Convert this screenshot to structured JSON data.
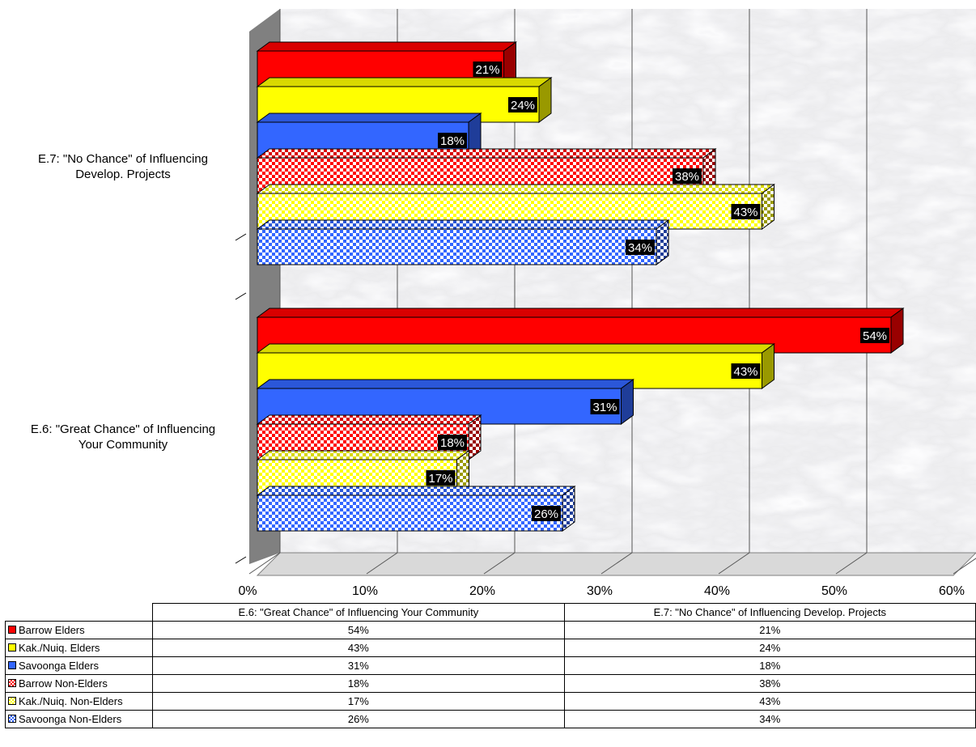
{
  "chart_data": {
    "type": "bar",
    "orientation": "horizontal",
    "categories": [
      "E.6: \"Great Chance\" of Influencing Your Community",
      "E.7: \"No Chance\" of Influencing Develop. Projects"
    ],
    "category_axis_labels": [
      [
        "E.6: \"Great Chance\" of Influencing",
        "Your Community"
      ],
      [
        "E.7: \"No Chance\" of Influencing",
        "Develop. Projects"
      ]
    ],
    "series": [
      {
        "name": "Barrow Elders",
        "values": [
          54,
          21
        ],
        "color": "#ff0000",
        "pattern": "solid"
      },
      {
        "name": "Kak./Nuiq. Elders",
        "values": [
          43,
          24
        ],
        "color": "#ffff00",
        "pattern": "solid"
      },
      {
        "name": "Savoonga Elders",
        "values": [
          31,
          18
        ],
        "color": "#3366ff",
        "pattern": "solid"
      },
      {
        "name": "Barrow Non-Elders",
        "values": [
          18,
          38
        ],
        "color": "#ff0000",
        "pattern": "checker"
      },
      {
        "name": "Kak./Nuiq. Non-Elders",
        "values": [
          17,
          43
        ],
        "color": "#ffff00",
        "pattern": "checker"
      },
      {
        "name": "Savoonga Non-Elders",
        "values": [
          26,
          34
        ],
        "color": "#3366ff",
        "pattern": "checker"
      }
    ],
    "value_labels": {
      "Barrow Elders": [
        "54%",
        "21%"
      ],
      "Kak./Nuiq. Elders": [
        "43%",
        "24%"
      ],
      "Savoonga Elders": [
        "31%",
        "18%"
      ],
      "Barrow Non-Elders": [
        "18%",
        "38%"
      ],
      "Kak./Nuiq. Non-Elders": [
        "17%",
        "43%"
      ],
      "Savoonga Non-Elders": [
        "26%",
        "34%"
      ]
    },
    "xlim": [
      0,
      60
    ],
    "x_ticks": [
      "0%",
      "10%",
      "20%",
      "30%",
      "40%",
      "50%",
      "60%"
    ],
    "x_tick_values": [
      0,
      10,
      20,
      30,
      40,
      50,
      60
    ],
    "grid": true,
    "style": "3d",
    "backdrop": "marble",
    "legend": "data-table-below"
  },
  "table": {
    "headers": [
      "E.6: \"Great Chance\" of Influencing Your Community",
      "E.7: \"No Chance\" of Influencing Develop. Projects"
    ],
    "rows": [
      {
        "label": "Barrow Elders",
        "cells": [
          "54%",
          "21%"
        ]
      },
      {
        "label": "Kak./Nuiq. Elders",
        "cells": [
          "43%",
          "24%"
        ]
      },
      {
        "label": "Savoonga Elders",
        "cells": [
          "31%",
          "18%"
        ]
      },
      {
        "label": "Barrow Non-Elders",
        "cells": [
          "18%",
          "38%"
        ]
      },
      {
        "label": "Kak./Nuiq. Non-Elders",
        "cells": [
          "17%",
          "43%"
        ]
      },
      {
        "label": "Savoonga Non-Elders",
        "cells": [
          "26%",
          "34%"
        ]
      }
    ]
  }
}
